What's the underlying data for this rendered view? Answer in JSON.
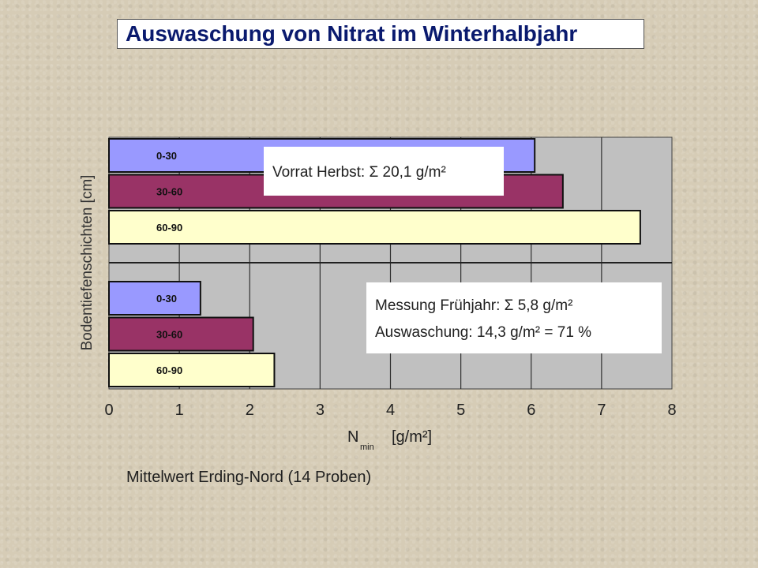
{
  "title": "Auswaschung von Nitrat im Winterhalbjahr",
  "footnote": "Mittelwert Erding-Nord (14 Proben)",
  "chart_data": {
    "type": "bar",
    "orientation": "horizontal",
    "xlabel_main": "N",
    "xlabel_sub": "min",
    "xlabel_unit": "[g/m²]",
    "ylabel": "Bodentiefenschichten [cm]",
    "xlim": [
      0,
      8
    ],
    "xticks": [
      "0",
      "1",
      "2",
      "3",
      "4",
      "5",
      "6",
      "7",
      "8"
    ],
    "grid": true,
    "groups": [
      {
        "annotation": [
          "Vorrat Herbst: Σ 20,1 g/m²"
        ],
        "bars": [
          {
            "label": "0-30",
            "value": 6.05,
            "color": "#9999ff"
          },
          {
            "label": "30-60",
            "value": 6.45,
            "color": "#993366"
          },
          {
            "label": "60-90",
            "value": 7.55,
            "color": "#ffffcc"
          }
        ]
      },
      {
        "annotation": [
          "Messung Frühjahr: Σ 5,8 g/m²",
          "Auswaschung: 14,3 g/m² = 71 %"
        ],
        "bars": [
          {
            "label": "0-30",
            "value": 1.3,
            "color": "#9999ff"
          },
          {
            "label": "30-60",
            "value": 2.05,
            "color": "#993366"
          },
          {
            "label": "60-90",
            "value": 2.35,
            "color": "#ffffcc"
          }
        ]
      }
    ]
  }
}
